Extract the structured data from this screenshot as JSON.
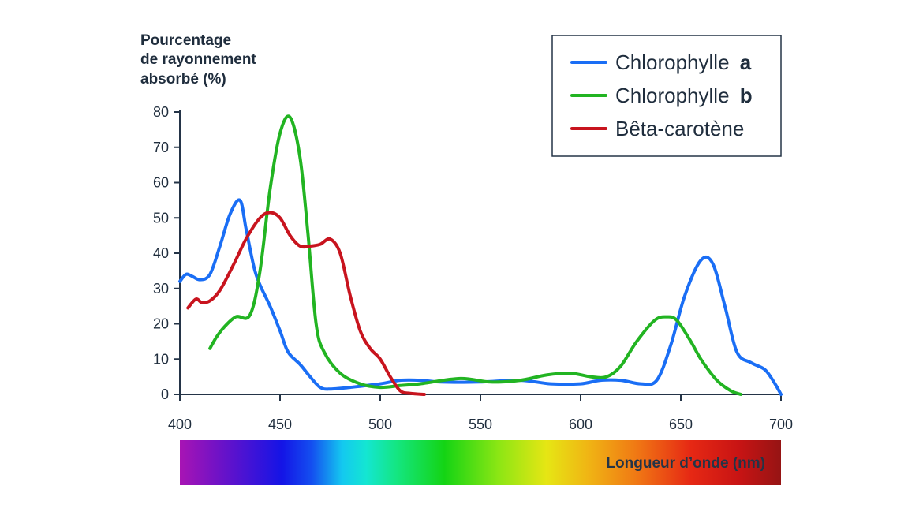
{
  "chart_data": {
    "type": "line",
    "ylabel": [
      "Pourcentage",
      "de rayonnement",
      "absorbé (%)"
    ],
    "xlabel": "Longueur d’onde (nm)",
    "xlim": [
      400,
      700
    ],
    "ylim": [
      0,
      80
    ],
    "xticks": [
      400,
      450,
      500,
      550,
      600,
      650,
      700
    ],
    "yticks": [
      0,
      10,
      20,
      30,
      40,
      50,
      60,
      70,
      80
    ],
    "grid": false,
    "legend_position": "top-right",
    "series": [
      {
        "name": "Chlorophylle",
        "name_suffix": "a",
        "color": "#1a6ef5",
        "points": [
          [
            400,
            32
          ],
          [
            403,
            34
          ],
          [
            406,
            33.5
          ],
          [
            410,
            32.5
          ],
          [
            415,
            34
          ],
          [
            420,
            42
          ],
          [
            425,
            51
          ],
          [
            430,
            55
          ],
          [
            433,
            47
          ],
          [
            437,
            36
          ],
          [
            440,
            31
          ],
          [
            445,
            25
          ],
          [
            450,
            18
          ],
          [
            454,
            12
          ],
          [
            460,
            8.5
          ],
          [
            465,
            5
          ],
          [
            470,
            2
          ],
          [
            475,
            1.5
          ],
          [
            485,
            2
          ],
          [
            500,
            3
          ],
          [
            510,
            4
          ],
          [
            520,
            4
          ],
          [
            530,
            3.5
          ],
          [
            550,
            3.5
          ],
          [
            570,
            4
          ],
          [
            585,
            3
          ],
          [
            600,
            3
          ],
          [
            610,
            4
          ],
          [
            620,
            4
          ],
          [
            630,
            3
          ],
          [
            638,
            4
          ],
          [
            645,
            14
          ],
          [
            652,
            28
          ],
          [
            660,
            38
          ],
          [
            666,
            37
          ],
          [
            672,
            25
          ],
          [
            678,
            12
          ],
          [
            685,
            9
          ],
          [
            692,
            7
          ],
          [
            697,
            3
          ],
          [
            700,
            0
          ]
        ]
      },
      {
        "name": "Chlorophylle",
        "name_suffix": "b",
        "color": "#22b422",
        "points": [
          [
            415,
            13
          ],
          [
            418,
            16
          ],
          [
            422,
            19
          ],
          [
            428,
            22
          ],
          [
            435,
            22.5
          ],
          [
            440,
            35
          ],
          [
            445,
            58
          ],
          [
            450,
            74
          ],
          [
            455,
            78.5
          ],
          [
            460,
            67
          ],
          [
            464,
            45
          ],
          [
            468,
            20
          ],
          [
            472,
            12
          ],
          [
            480,
            6
          ],
          [
            490,
            3
          ],
          [
            500,
            2
          ],
          [
            510,
            2.5
          ],
          [
            520,
            3
          ],
          [
            540,
            4.5
          ],
          [
            555,
            3.5
          ],
          [
            570,
            4
          ],
          [
            583,
            5.5
          ],
          [
            595,
            6
          ],
          [
            605,
            5
          ],
          [
            613,
            5
          ],
          [
            620,
            8
          ],
          [
            628,
            15
          ],
          [
            637,
            21
          ],
          [
            643,
            22
          ],
          [
            648,
            21
          ],
          [
            655,
            15
          ],
          [
            660,
            10
          ],
          [
            668,
            4
          ],
          [
            675,
            1
          ],
          [
            680,
            0
          ]
        ]
      },
      {
        "name": "Bêta-carotène",
        "name_suffix": "",
        "color": "#c8141e",
        "points": [
          [
            404,
            24.5
          ],
          [
            408,
            27
          ],
          [
            411,
            26
          ],
          [
            415,
            26.5
          ],
          [
            420,
            29.5
          ],
          [
            427,
            37
          ],
          [
            433,
            44
          ],
          [
            440,
            50
          ],
          [
            445,
            51.5
          ],
          [
            450,
            50
          ],
          [
            455,
            45
          ],
          [
            460,
            42
          ],
          [
            465,
            42
          ],
          [
            470,
            42.5
          ],
          [
            475,
            44
          ],
          [
            480,
            40
          ],
          [
            485,
            28
          ],
          [
            490,
            18
          ],
          [
            495,
            13
          ],
          [
            500,
            10
          ],
          [
            505,
            5
          ],
          [
            510,
            1
          ],
          [
            515,
            0.3
          ],
          [
            522,
            0
          ]
        ]
      }
    ]
  }
}
